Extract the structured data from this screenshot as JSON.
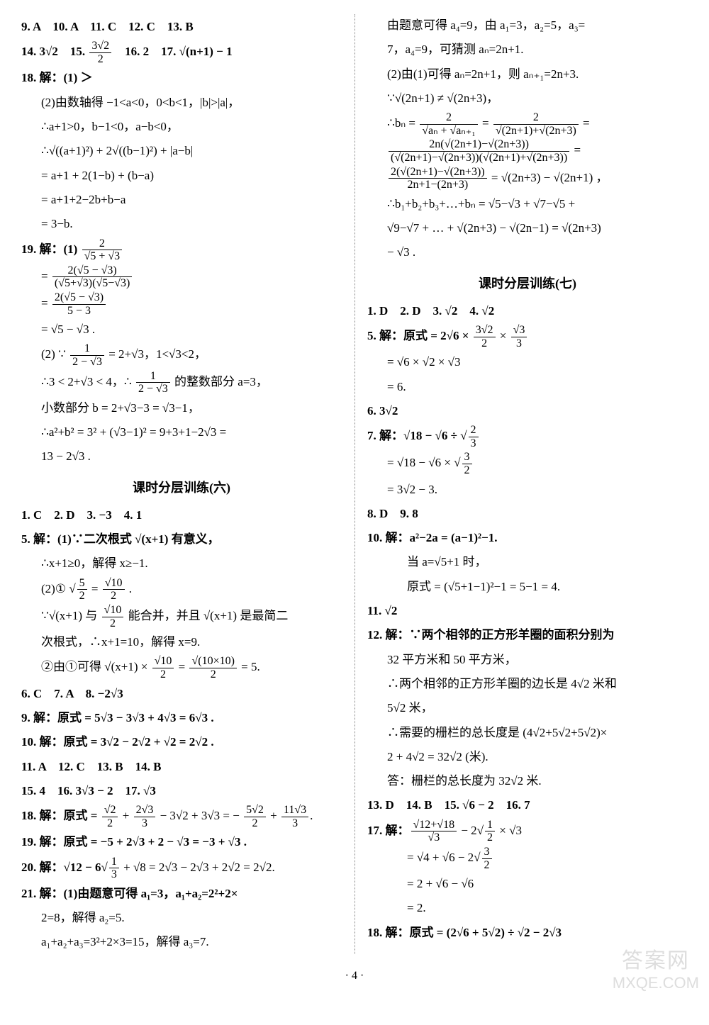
{
  "page_number": "· 4 ·",
  "watermark": {
    "top": "答案网",
    "bottom": "MXQE.COM"
  },
  "section6_title": "课时分层训练(六)",
  "section7_title": "课时分层训练(七)",
  "left": {
    "l1": "9. A　10. A　11. C　12. C　13. B",
    "l2a": "14. 3√2　15. ",
    "l2b": "　16. 2　17. √(n+1) − 1",
    "l3": "18. 解：(1) ＞",
    "l4": "(2)由数轴得 −1<a<0，0<b<1，|b|>|a|，",
    "l5": "∴a+1>0，b−1<0，a−b<0，",
    "l6": "∴√((a+1)²) + 2√((b−1)²) + |a−b|",
    "l7": "= a+1 + 2(1−b) + (b−a)",
    "l8": "= a+1+2−2b+b−a",
    "l9": "= 3−b.",
    "l10a": "19. 解：(1) ",
    "l12a": "= ",
    "l13": "= √5 − √3 .",
    "l14a": "(2) ∵ ",
    "l14b": " = 2+√3，1<√3<2，",
    "l15a": "∴3 < 2+√3 < 4，∴ ",
    "l15b": " 的整数部分 a=3，",
    "l16": "小数部分 b = 2+√3−3 = √3−1，",
    "l17": "∴a²+b² = 3² + (√3−1)² = 9+3+1−2√3 =",
    "l18": "13 − 2√3 .",
    "s6_l1": "1. C　2. D　3. −3　4. 1",
    "s6_l2": "5. 解：(1)∵二次根式 √(x+1) 有意义，",
    "s6_l3": "∴x+1≥0，解得 x≥−1.",
    "s6_l4a": "(2)① ",
    "s6_l4b": " .",
    "s6_l5a": "∵√(x+1) 与 ",
    "s6_l5b": " 能合并，并且 √(x+1) 是最简二",
    "s6_l6": "次根式，∴x+1=10，解得 x=9.",
    "s6_l7a": "②由①可得 √(x+1) × ",
    "s6_l7b": " = ",
    "s6_l7c": " = 5.",
    "s6_l8": "6. C　7. A　8. −2√3",
    "s6_l9": "9. 解：原式 = 5√3 − 3√3 + 4√3 = 6√3 .",
    "s6_l10": "10. 解：原式 = 3√2 − 2√2 + √2 = 2√2 .",
    "s6_l11": "11. A　12. C　13. B　14. B",
    "s6_l12": "15. 4　16. 3√3 − 2　17. √3",
    "s6_l13a": "18. 解：原式 = ",
    "s6_l13b": " + ",
    "s6_l13c": " − 3√2 + 3√3 = − ",
    "s6_l13d": " + ",
    "s6_l13e": ".",
    "s6_l14": "19. 解：原式 = −5 + 2√3 + 2 − √3 = −3 + √3 .",
    "s6_l15a": "20. 解：√12 − 6",
    "s6_l15b": " + √8 = 2√3 − 2√3 + 2√2 = 2√2.",
    "s6_l16": "21. 解：(1)由题意可得 a₁=3，a₁+a₂=2²+2×",
    "s6_l17": "2=8，解得 a₂=5."
  },
  "right": {
    "r1": "a₁+a₂+a₃=3²+2×3=15，解得 a₃=7.",
    "r2": "由题意可得 a₄=9，由 a₁=3，a₂=5，a₃=",
    "r3": "7，a₄=9，可猜测 aₙ=2n+1.",
    "r4": "(2)由(1)可得 aₙ=2n+1，则 aₙ₊₁=2n+3.",
    "r5": "∵√(2n+1) ≠ √(2n+3)，",
    "r6a": "∴bₙ = ",
    "r6b": " = ",
    "r6c": " =",
    "r8a": " = ",
    "r8b": " = √(2n+3) − √(2n+1) ，",
    "r9": "∴b₁+b₂+b₃+…+bₙ = √5−√3 + √7−√5 +",
    "r10": "√9−√7 + … + √(2n+3) − √(2n−1) = √(2n+3)",
    "r11": "− √3 .",
    "s7_l1": "1. D　2. D　3. √2　4. √2",
    "s7_l2a": "5. 解：原式 = 2√6 × ",
    "s7_l2b": " × ",
    "s7_l3": "= √6 × √2 × √3",
    "s7_l4": "= 6.",
    "s7_l5": "6. 3√2",
    "s7_l6a": "7. 解：√18 − √6 ÷ ",
    "s7_l7a": "= √18 − √6 × ",
    "s7_l8": "= 3√2 − 3.",
    "s7_l9": "8. D　9. 8",
    "s7_l10": "10. 解：a²−2a = (a−1)²−1.",
    "s7_l11": "当 a=√5+1 时，",
    "s7_l12": "原式 = (√5+1−1)²−1 = 5−1 = 4.",
    "s7_l13": "11. √2",
    "s7_l14": "12. 解：∵两个相邻的正方形羊圈的面积分别为",
    "s7_l15": "32 平方米和 50 平方米，",
    "s7_l16": "∴两个相邻的正方形羊圈的边长是 4√2 米和",
    "s7_l17": "5√2 米，",
    "s7_l18": "∴需要的栅栏的总长度是 (4√2+5√2+5√2)×",
    "s7_l19": "2 + 4√2 = 32√2 (米).",
    "s7_l20": "答：栅栏的总长度为 32√2 米.",
    "s7_l21": "13. D　14. B　15. √6 − 2　16. 7",
    "s7_l22a": "17. 解：",
    "s7_l22b": " − 2",
    "s7_l22c": " × √3",
    "s7_l23a": "= √4 + √6 − 2",
    "s7_l24": "= 2 + √6 − √6",
    "s7_l25": "= 2.",
    "s7_l26": "18. 解：原式 = (2√6 + 5√2) ÷ √2 − 2√3"
  }
}
